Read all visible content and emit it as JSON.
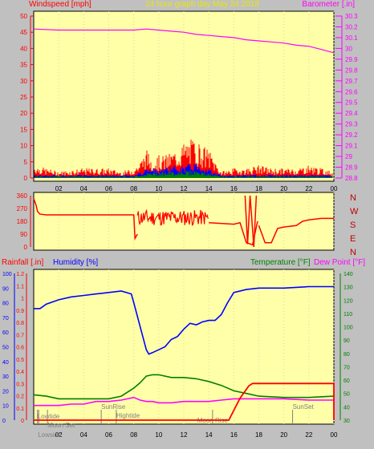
{
  "colors": {
    "panel": "#ffffa8",
    "background": "#c0c0c0",
    "title": "#e8e800",
    "red": "#ff0000",
    "blue": "#0000ff",
    "green": "#008000",
    "magenta": "#ff00ff",
    "gray": "#808080",
    "darkred": "#c00000"
  },
  "chart_data": [
    {
      "id": "wind_baro",
      "type": "line",
      "title": "24 hour graph day   May 24 2018",
      "ylabel_left": "Windspeed [mph]",
      "ylabel_right": "Barometer [.in]",
      "x_ticks": [
        "02",
        "04",
        "06",
        "08",
        "10",
        "12",
        "14",
        "16",
        "18",
        "20",
        "22",
        "00"
      ],
      "y_left": {
        "min": 0,
        "max": 50,
        "ticks": [
          "0",
          "5",
          "10",
          "15",
          "20",
          "25",
          "30",
          "35",
          "40",
          "45",
          "50"
        ]
      },
      "y_right": {
        "min": 28.8,
        "max": 30.3,
        "ticks": [
          "28.8",
          "28.9",
          "29",
          "29.1",
          "29.2",
          "29.3",
          "29.4",
          "29.5",
          "29.6",
          "29.7",
          "29.8",
          "29.9",
          "30",
          "30.1",
          "30.2",
          "30.3"
        ]
      },
      "series": [
        {
          "name": "Barometer",
          "axis": "right",
          "color": "#ff00ff",
          "x": [
            0,
            2,
            4,
            6,
            8,
            9,
            10,
            11,
            12,
            13,
            14,
            15,
            16,
            17,
            18,
            19,
            20,
            21,
            22,
            23,
            24
          ],
          "y": [
            30.18,
            30.17,
            30.17,
            30.17,
            30.17,
            30.18,
            30.17,
            30.16,
            30.15,
            30.13,
            30.12,
            30.11,
            30.1,
            30.08,
            30.07,
            30.06,
            30.05,
            30.03,
            30.02,
            29.99,
            29.96
          ]
        }
      ],
      "gust_envelope": {
        "x": [
          0,
          2,
          4,
          6,
          7,
          8,
          8.5,
          9,
          9.5,
          10,
          10.5,
          11,
          11.5,
          12,
          12.5,
          13,
          13.5,
          14,
          15,
          16,
          17,
          18,
          19,
          20,
          21,
          22,
          23,
          24
        ],
        "y": [
          4,
          2,
          3,
          3,
          2,
          3,
          5,
          9,
          6,
          7,
          7,
          8,
          9,
          11,
          12,
          12,
          10,
          9,
          2,
          3,
          3,
          4,
          3,
          3,
          3,
          4,
          3,
          2
        ]
      },
      "avg_envelope": {
        "x": [
          0,
          4,
          8,
          9,
          10,
          11,
          12,
          13,
          14,
          15,
          18,
          22,
          24
        ],
        "y": [
          1,
          1,
          1,
          3,
          3,
          4,
          4,
          5,
          3,
          1,
          1,
          1,
          1
        ]
      },
      "dir_envelope": {
        "x": [
          0,
          8,
          9,
          10,
          11,
          12,
          13,
          14,
          15,
          24
        ],
        "y": [
          0.5,
          0.5,
          1.5,
          2,
          2,
          2.5,
          2.5,
          1.5,
          0.5,
          0.5
        ]
      }
    },
    {
      "id": "direction",
      "type": "line",
      "y_ticks": [
        "0",
        "90",
        "180",
        "270",
        "360"
      ],
      "y_right_labels": [
        "N",
        "W",
        "S",
        "E",
        "N"
      ],
      "series": [
        {
          "name": "Direction",
          "color": "#ff0000",
          "x": [
            0,
            0.2,
            0.3,
            0.5,
            1,
            3,
            5,
            6,
            7,
            7.9,
            8,
            8.1,
            8.3
          ],
          "y": [
            340,
            290,
            250,
            230,
            225,
            225,
            225,
            225,
            225,
            225,
            225,
            60,
            90
          ]
        },
        {
          "name": "Direction2",
          "color": "#ff0000",
          "x": [
            14,
            16,
            16.5,
            17,
            17.5,
            17.9
          ],
          "y": [
            170,
            160,
            170,
            30,
            15,
            180
          ]
        },
        {
          "name": "Direction3",
          "color": "#ff0000",
          "x": [
            18,
            18.5,
            19,
            19.5,
            20,
            21,
            21.5,
            22,
            23,
            24
          ],
          "y": [
            150,
            30,
            30,
            130,
            140,
            150,
            180,
            190,
            200,
            200
          ]
        }
      ]
    },
    {
      "id": "temp_hum",
      "type": "line",
      "ylabel_rain": "Rainfall [.in]",
      "ylabel_hum": "Humidity [%]",
      "ylabel_temp": "Temperature [°F]",
      "ylabel_dew": "Dew Point [°F]",
      "rain_ticks": [
        "0",
        "0.1",
        "0.2",
        "0.3",
        "0.4",
        "0.5",
        "0.6",
        "0.7",
        "0.8",
        "0.9",
        "1",
        "1.1",
        "1.2"
      ],
      "hum_ticks": [
        "0",
        "10",
        "20",
        "30",
        "40",
        "50",
        "60",
        "70",
        "80",
        "90",
        "100"
      ],
      "temp_ticks": [
        "30",
        "40",
        "50",
        "60",
        "70",
        "80",
        "90",
        "100",
        "110",
        "120",
        "130",
        "140"
      ],
      "x_ticks": [
        "02",
        "04",
        "06",
        "08",
        "10",
        "12",
        "14",
        "16",
        "18",
        "20",
        "22",
        "00"
      ],
      "annotations": {
        "lowtide1": "Lowtide",
        "moonset": "Moon Set",
        "sunrise": "SunRise",
        "hightide": "Hightide",
        "moonrise": "Moon Rise",
        "sunset": "SunSet",
        "lowtide2": "Lowside"
      },
      "series": [
        {
          "name": "Humidity",
          "axis": "hum",
          "color": "#0000ff",
          "x": [
            0,
            0.5,
            1,
            2,
            3,
            4,
            5,
            6,
            7,
            7.8,
            8,
            8.5,
            9,
            9.2,
            9.5,
            10,
            10.5,
            11,
            11.5,
            12,
            12.5,
            13,
            13.5,
            14,
            14.5,
            15,
            15.5,
            16,
            17,
            18,
            20,
            22,
            24
          ],
          "y": [
            76,
            76,
            79,
            82,
            84,
            85,
            86,
            87,
            88,
            86,
            80,
            64,
            48,
            45,
            46,
            48,
            50,
            55,
            57,
            62,
            66,
            65,
            67,
            68,
            68,
            72,
            80,
            87,
            89,
            90,
            90,
            91,
            91
          ]
        },
        {
          "name": "Temperature",
          "axis": "temp",
          "color": "#008000",
          "x": [
            0,
            1,
            2,
            4,
            6,
            7,
            8,
            8.5,
            9,
            9.5,
            10,
            11,
            12,
            13,
            14,
            15,
            16,
            17,
            18,
            20,
            22,
            24
          ],
          "y": [
            49,
            48,
            46,
            46,
            46,
            48,
            54,
            58,
            63,
            64,
            64,
            62,
            62,
            61,
            59,
            56,
            52,
            50,
            48,
            47,
            47,
            48
          ]
        },
        {
          "name": "Dew Point",
          "axis": "temp",
          "color": "#ff00ff",
          "x": [
            0,
            1,
            2,
            3,
            4,
            5,
            6,
            7,
            8,
            8.5,
            9,
            9.5,
            10,
            11,
            12,
            13,
            14,
            15,
            16,
            17,
            18,
            20,
            22,
            24
          ],
          "y": [
            41,
            41,
            41,
            42,
            42,
            44,
            44,
            45,
            47,
            45,
            44,
            44,
            43,
            43,
            44,
            44,
            44,
            45,
            46,
            46,
            46,
            46,
            45,
            45
          ]
        },
        {
          "name": "Rainfall",
          "axis": "rain",
          "color": "#ff0000",
          "x": [
            0,
            15.6,
            16.5,
            17.2,
            17.5,
            24,
            24
          ],
          "y": [
            0,
            0,
            0.18,
            0.28,
            0.3,
            0.3,
            0
          ]
        }
      ]
    }
  ]
}
